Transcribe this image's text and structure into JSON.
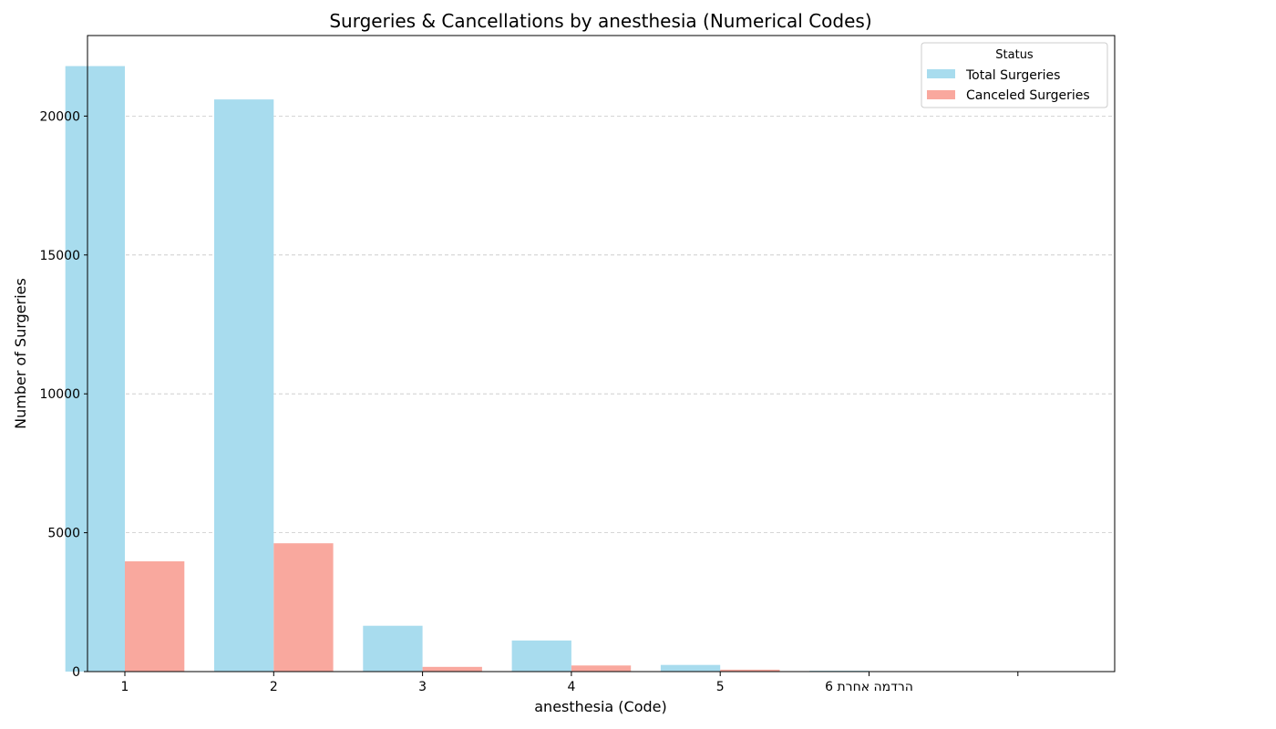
{
  "chart_data": {
    "type": "bar",
    "title": "Surgeries & Cancellations by anesthesia (Numerical Codes)",
    "xlabel": "anesthesia (Code)",
    "ylabel": "Number of Surgeries",
    "categories": [
      "1",
      "2",
      "3",
      "4",
      "5",
      "הרדמה אחרת 6",
      ""
    ],
    "series": [
      {
        "name": "Total Surgeries",
        "color": "#a8dcee",
        "values": [
          21800,
          20600,
          1650,
          1120,
          240,
          30,
          0
        ]
      },
      {
        "name": "Canceled Surgeries",
        "color": "#f9a89e",
        "values": [
          3970,
          4620,
          170,
          220,
          70,
          0,
          0
        ]
      }
    ],
    "ylim": [
      0,
      22900
    ],
    "yticks": [
      0,
      5000,
      10000,
      15000,
      20000
    ],
    "grid": "y, dashed",
    "legend": {
      "title": "Status",
      "position": "top-right"
    }
  }
}
